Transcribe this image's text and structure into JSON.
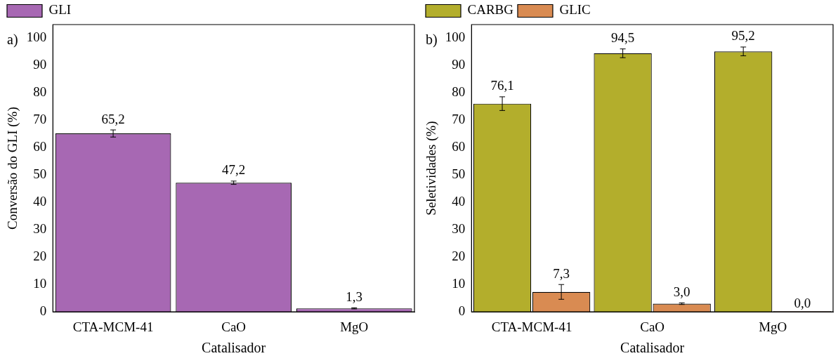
{
  "chart_data": [
    {
      "type": "bar",
      "xlabel": "Catalisador",
      "ylabel": "Conversão do GLI (%)",
      "annotations": [
        "a)"
      ],
      "categories": [
        "CTA-MCM-41",
        "CaO",
        "MgO"
      ],
      "series": [
        {
          "name": "GLI",
          "color": "#a768b3",
          "values": [
            65.2,
            47.2,
            1.3
          ],
          "errors": [
            1.3,
            0.6,
            0.2
          ],
          "value_labels": [
            "65,2",
            "47,2",
            "1,3"
          ]
        }
      ],
      "ylim": [
        0,
        105
      ],
      "yticks": [
        0,
        10,
        20,
        30,
        40,
        50,
        60,
        70,
        80,
        90,
        100
      ],
      "grid": false,
      "legend": "top left"
    },
    {
      "type": "bar",
      "xlabel": "Catalisador",
      "ylabel": "Seletividades (%)",
      "annotations": [
        "b)"
      ],
      "categories": [
        "CTA-MCM-41",
        "CaO",
        "MgO"
      ],
      "series": [
        {
          "name": "CARBG",
          "color": "#b3ae2c",
          "values": [
            76.1,
            94.5,
            95.2
          ],
          "errors": [
            2.5,
            1.6,
            1.6
          ],
          "value_labels": [
            "76,1",
            "94,5",
            "95,2"
          ]
        },
        {
          "name": "GLIC",
          "color": "#d98b52",
          "values": [
            7.3,
            3.0,
            0.0
          ],
          "errors": [
            2.7,
            0.3,
            null
          ],
          "value_labels": [
            "7,3",
            "3,0",
            "0,0"
          ]
        }
      ],
      "ylim": [
        0,
        105
      ],
      "yticks": [
        0,
        10,
        20,
        30,
        40,
        50,
        60,
        70,
        80,
        90,
        100
      ],
      "grid": false,
      "legend": "top left"
    }
  ]
}
